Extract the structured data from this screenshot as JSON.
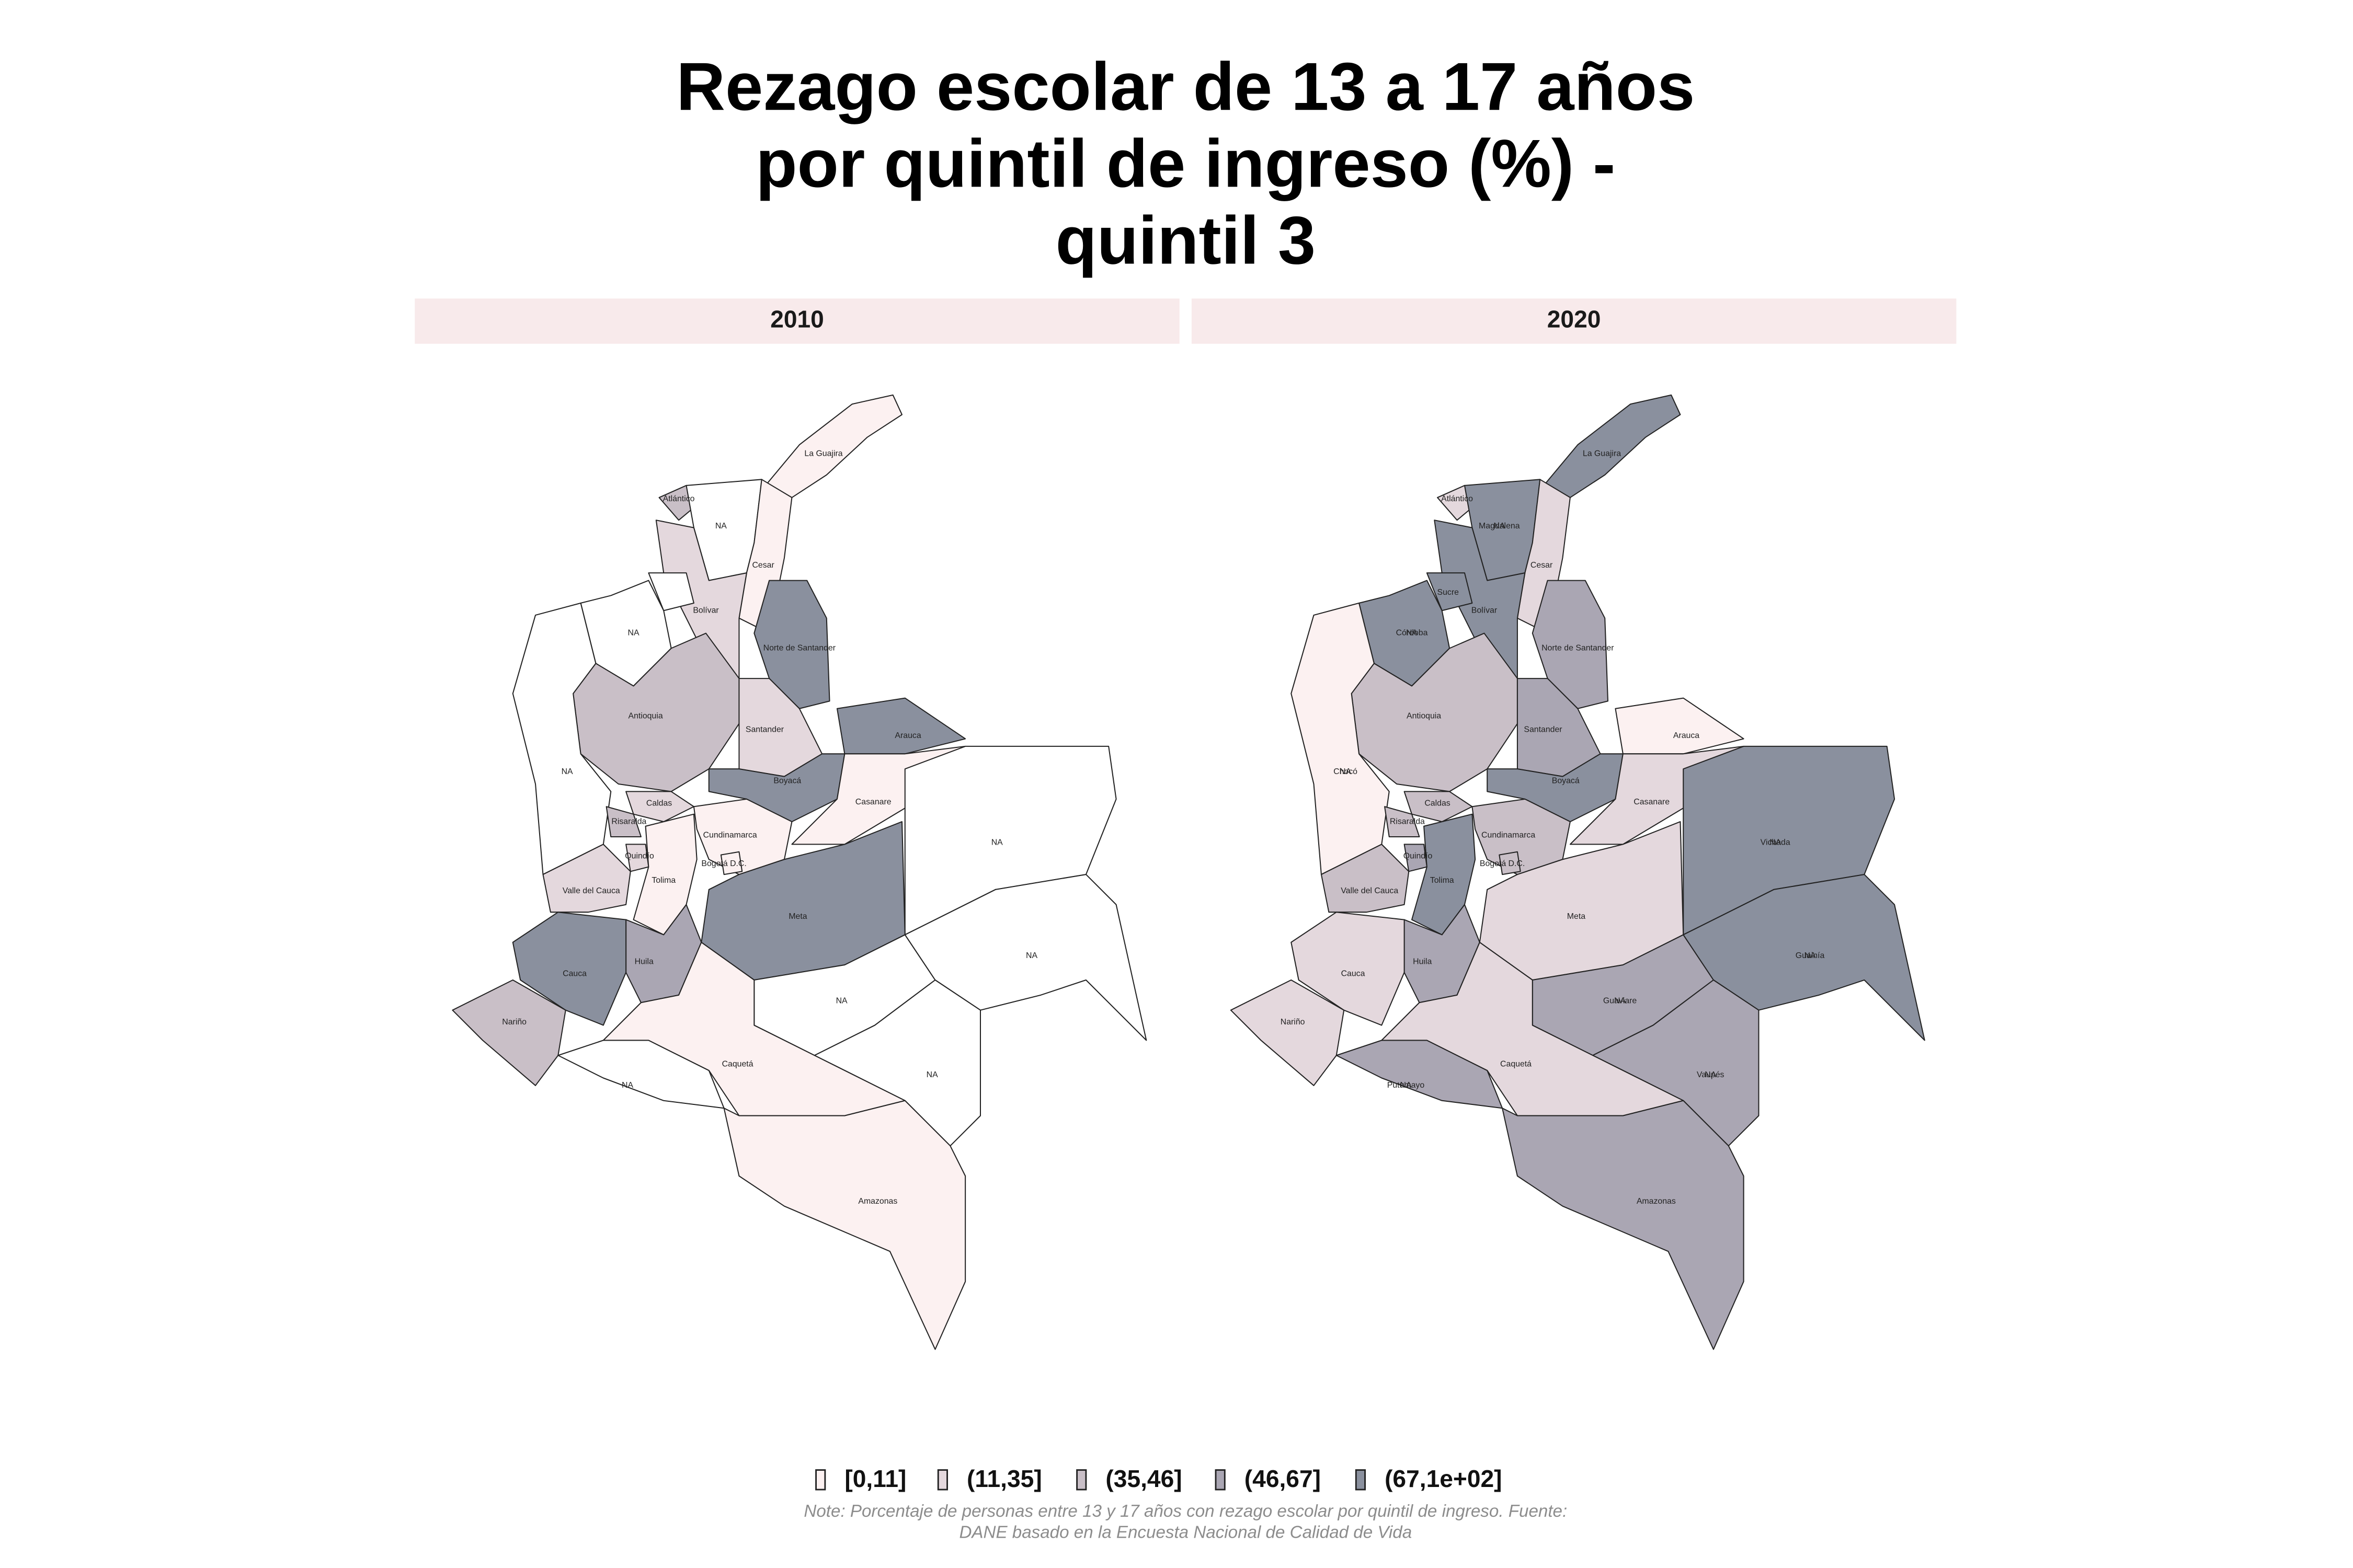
{
  "title_lines": [
    "Rezago escolar de 13 a 17 años",
    "por quintil de ingreso (%) -",
    "quintil 3"
  ],
  "legend": [
    {
      "label": "[0,11]",
      "color": "#fcf1f1"
    },
    {
      "label": "(11,35]",
      "color": "#e4d8dd"
    },
    {
      "label": "(35,46]",
      "color": "#c9bfc7"
    },
    {
      "label": "(46,67]",
      "color": "#aaa6b3"
    },
    {
      "label": "(67,1e+02]",
      "color": "#8a909e"
    }
  ],
  "na_color": "#ffffff",
  "note_lines": [
    "Note: Porcentaje de personas entre 13 y 17 años con rezago escolar por quintil de ingreso. Fuente:",
    "DANE basado en la Encuesta Nacional de Calidad de Vida"
  ],
  "panels": [
    {
      "year": "2010",
      "regions": [
        {
          "labels": [
            "La Guajira"
          ],
          "class": 0
        },
        {
          "labels": [
            "Atlántico"
          ],
          "class": 2
        },
        {
          "labels": [
            "NA"
          ],
          "class": null
        },
        {
          "labels": [
            "Cesar"
          ],
          "class": 0
        },
        {
          "labels": [
            "Bolívar"
          ],
          "class": 1
        },
        {
          "labels": [],
          "class": null
        },
        {
          "labels": [
            "NA"
          ],
          "class": null
        },
        {
          "labels": [
            "Norte de Santander"
          ],
          "class": 4
        },
        {
          "labels": [
            "Antioquia"
          ],
          "class": 2
        },
        {
          "labels": [
            "NA"
          ],
          "class": null
        },
        {
          "labels": [
            "Santander"
          ],
          "class": 1
        },
        {
          "labels": [
            "Arauca"
          ],
          "class": 4
        },
        {
          "labels": [
            "Boyacá"
          ],
          "class": 4
        },
        {
          "labels": [
            "Casanare"
          ],
          "class": 0
        },
        {
          "labels": [
            "NA"
          ],
          "class": null
        },
        {
          "labels": [
            "Caldas"
          ],
          "class": 1
        },
        {
          "labels": [
            "Risaralda"
          ],
          "class": 2
        },
        {
          "labels": [
            "Cundinamarca"
          ],
          "class": 0
        },
        {
          "labels": [
            "Bogotá D.C."
          ],
          "class": 0
        },
        {
          "labels": [
            "Quindío"
          ],
          "class": 1
        },
        {
          "labels": [
            "Tolima"
          ],
          "class": 0
        },
        {
          "labels": [
            "Valle del Cauca"
          ],
          "class": 1
        },
        {
          "labels": [
            "Meta"
          ],
          "class": 4
        },
        {
          "labels": [
            "NA"
          ],
          "class": null
        },
        {
          "labels": [
            "NA"
          ],
          "class": null
        },
        {
          "labels": [
            "NA"
          ],
          "class": null
        },
        {
          "labels": [
            "Huila"
          ],
          "class": 3
        },
        {
          "labels": [
            "Cauca"
          ],
          "class": 4
        },
        {
          "labels": [
            "Nariño"
          ],
          "class": 2
        },
        {
          "labels": [
            "NA"
          ],
          "class": null
        },
        {
          "labels": [
            "Caquetá"
          ],
          "class": 0
        },
        {
          "labels": [
            "Amazonas"
          ],
          "class": 0
        }
      ]
    },
    {
      "year": "2020",
      "regions": [
        {
          "labels": [
            "La Guajira"
          ],
          "class": 4
        },
        {
          "labels": [
            "Atlántico"
          ],
          "class": 1
        },
        {
          "labels": [
            "Magdalena",
            "NA"
          ],
          "class": 4
        },
        {
          "labels": [
            "Cesar"
          ],
          "class": 1
        },
        {
          "labels": [
            "Bolívar"
          ],
          "class": 4
        },
        {
          "labels": [
            "Sucre"
          ],
          "class": 4
        },
        {
          "labels": [
            "Córdoba",
            "NA"
          ],
          "class": 4
        },
        {
          "labels": [
            "Norte de Santander"
          ],
          "class": 3
        },
        {
          "labels": [
            "Antioquia"
          ],
          "class": 2
        },
        {
          "labels": [
            "Chocó",
            "NA"
          ],
          "class": 0
        },
        {
          "labels": [
            "Santander"
          ],
          "class": 3
        },
        {
          "labels": [
            "Arauca"
          ],
          "class": 0
        },
        {
          "labels": [
            "Boyacá"
          ],
          "class": 4
        },
        {
          "labels": [
            "Casanare"
          ],
          "class": 1
        },
        {
          "labels": [
            "Vichada",
            "NA"
          ],
          "class": 4
        },
        {
          "labels": [
            "Caldas"
          ],
          "class": 2
        },
        {
          "labels": [
            "Risaralda"
          ],
          "class": 2
        },
        {
          "labels": [
            "Cundinamarca"
          ],
          "class": 2
        },
        {
          "labels": [
            "Bogotá D.C."
          ],
          "class": 2
        },
        {
          "labels": [
            "Quindío"
          ],
          "class": 3
        },
        {
          "labels": [
            "Tolima"
          ],
          "class": 4
        },
        {
          "labels": [
            "Valle del Cauca"
          ],
          "class": 2
        },
        {
          "labels": [
            "Meta"
          ],
          "class": 1
        },
        {
          "labels": [
            "Guaviare",
            "NA"
          ],
          "class": 3
        },
        {
          "labels": [
            "Guainía",
            "NA"
          ],
          "class": 4
        },
        {
          "labels": [
            "Vaupés",
            "NA"
          ],
          "class": 3
        },
        {
          "labels": [
            "Huila"
          ],
          "class": 3
        },
        {
          "labels": [
            "Cauca"
          ],
          "class": 1
        },
        {
          "labels": [
            "Nariño"
          ],
          "class": 1
        },
        {
          "labels": [
            "Putumayo",
            "NA"
          ],
          "class": 3
        },
        {
          "labels": [
            "Caquetá"
          ],
          "class": 1
        },
        {
          "labels": [
            "Amazonas"
          ],
          "class": 3
        }
      ]
    }
  ]
}
